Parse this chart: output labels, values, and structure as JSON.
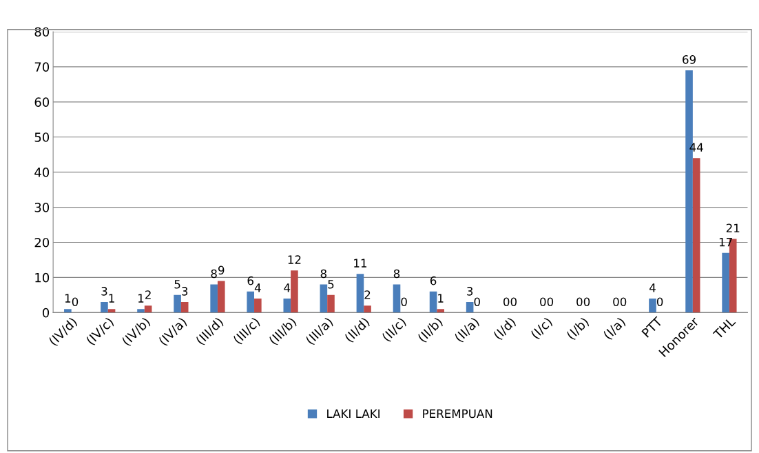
{
  "chart_data": {
    "type": "bar",
    "categories": [
      "(IV/d)",
      "(IV/c)",
      "(IV/b)",
      "(IV/a)",
      "(III/d)",
      "(III/c)",
      "(III/b)",
      "(III/a)",
      "(II/d)",
      "(II/c)",
      "(II/b)",
      "(II/a)",
      "(I/d)",
      "(I/c)",
      "(I/b)",
      "(I/a)",
      "PTT",
      "Honorer",
      "THL"
    ],
    "series": [
      {
        "name": "LAKI LAKI",
        "color": "#4a7ebb",
        "values": [
          1,
          3,
          1,
          5,
          8,
          6,
          4,
          8,
          11,
          8,
          6,
          3,
          0,
          0,
          0,
          0,
          4,
          69,
          17
        ]
      },
      {
        "name": "PEREMPUAN",
        "color": "#be4b48",
        "values": [
          0,
          1,
          2,
          3,
          9,
          4,
          12,
          5,
          2,
          0,
          1,
          0,
          0,
          0,
          0,
          0,
          0,
          44,
          21
        ]
      }
    ],
    "ylim": [
      0,
      80
    ],
    "yticks": [
      0,
      10,
      20,
      30,
      40,
      50,
      60,
      70,
      80
    ],
    "grid": "y",
    "legend": "bottom",
    "data_labels": true
  }
}
